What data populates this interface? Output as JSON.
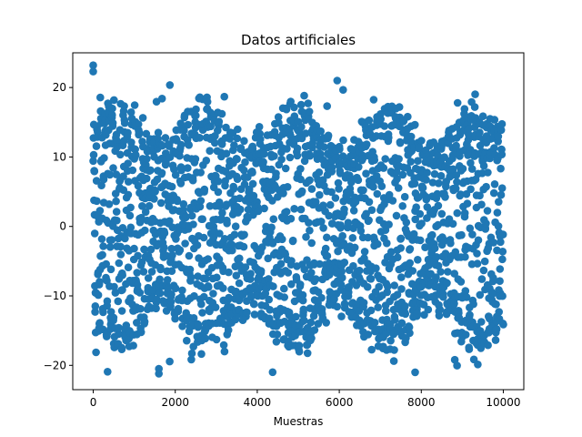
{
  "chart_data": {
    "type": "scatter",
    "title": "Datos artificiales",
    "xlabel": "Muestras",
    "ylabel": "",
    "xlim": [
      -500,
      10500
    ],
    "ylim": [
      -23.5,
      25
    ],
    "xticks": [
      0,
      2000,
      4000,
      6000,
      8000,
      10000
    ],
    "yticks": [
      -20,
      -10,
      0,
      10,
      20
    ],
    "grid": false,
    "legend": "none",
    "marker_color": "#1f77b4",
    "series": [
      {
        "n_points": 10000,
        "x_range": [
          0,
          10000
        ],
        "y_range": [
          -21.2,
          23.2
        ],
        "description_values": "Dense oscillating samples spread between about -17 and 17 with peaks near 23 at x=0 and troughs near -21 at x=1600 and x=7800"
      }
    ]
  }
}
